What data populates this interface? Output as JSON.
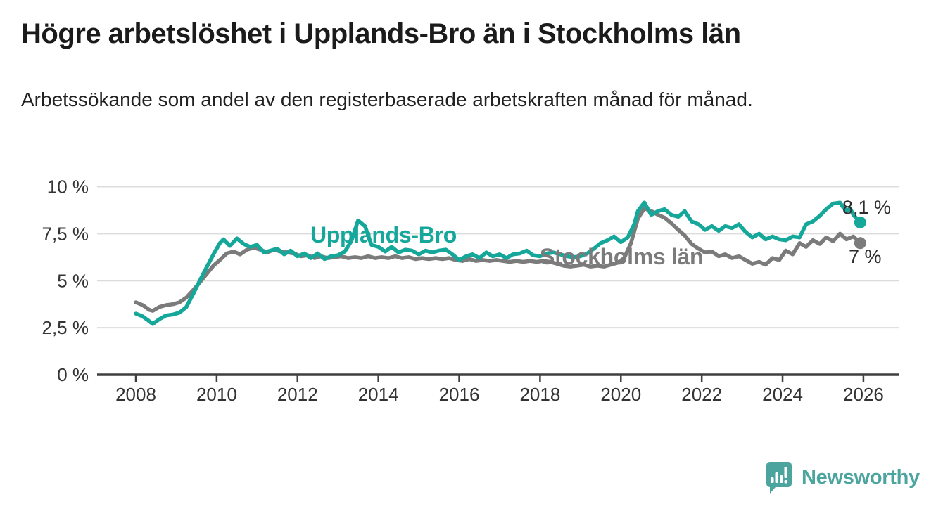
{
  "header": {
    "title": "Högre arbetslöshet i Upplands-Bro än i Stockholms län",
    "subtitle": "Arbetssökande som andel av den registerbaserade arbetskraften månad för månad."
  },
  "chart_data": {
    "type": "line",
    "title": "Högre arbetslöshet i Upplands-Bro än i Stockholms län",
    "grid": true,
    "legend_position": "inline-labels",
    "y_axis": {
      "range": [
        0,
        10
      ],
      "tick_values": [
        0,
        2.5,
        5,
        7.5,
        10
      ],
      "tick_labels": [
        "0 %",
        "2,5 %",
        "5 %",
        "7,5 %",
        "10 %"
      ]
    },
    "x_axis": {
      "range": [
        2007.6,
        2026.9
      ],
      "tick_values": [
        2008,
        2010,
        2012,
        2014,
        2016,
        2018,
        2020,
        2022,
        2024,
        2026
      ],
      "tick_labels": [
        "2008",
        "2010",
        "2012",
        "2014",
        "2016",
        "2018",
        "2020",
        "2022",
        "2024",
        "2026"
      ]
    },
    "series": [
      {
        "name": "Upplands-Bro",
        "color": "#16A79B",
        "end_label": "8,1 %",
        "end_value": 8.1,
        "points": [
          [
            2008.0,
            3.25
          ],
          [
            2008.17,
            3.1
          ],
          [
            2008.33,
            2.85
          ],
          [
            2008.42,
            2.7
          ],
          [
            2008.58,
            2.95
          ],
          [
            2008.75,
            3.15
          ],
          [
            2008.92,
            3.2
          ],
          [
            2009.08,
            3.3
          ],
          [
            2009.25,
            3.6
          ],
          [
            2009.42,
            4.3
          ],
          [
            2009.58,
            5.0
          ],
          [
            2009.75,
            5.7
          ],
          [
            2009.92,
            6.4
          ],
          [
            2010.08,
            7.0
          ],
          [
            2010.17,
            7.2
          ],
          [
            2010.33,
            6.85
          ],
          [
            2010.5,
            7.25
          ],
          [
            2010.67,
            6.95
          ],
          [
            2010.83,
            6.8
          ],
          [
            2011.0,
            6.9
          ],
          [
            2011.17,
            6.5
          ],
          [
            2011.33,
            6.6
          ],
          [
            2011.5,
            6.7
          ],
          [
            2011.67,
            6.4
          ],
          [
            2011.83,
            6.6
          ],
          [
            2012.0,
            6.3
          ],
          [
            2012.17,
            6.45
          ],
          [
            2012.33,
            6.2
          ],
          [
            2012.5,
            6.45
          ],
          [
            2012.67,
            6.15
          ],
          [
            2012.83,
            6.3
          ],
          [
            2013.0,
            6.35
          ],
          [
            2013.17,
            6.55
          ],
          [
            2013.33,
            7.1
          ],
          [
            2013.5,
            8.2
          ],
          [
            2013.67,
            7.9
          ],
          [
            2013.83,
            6.9
          ],
          [
            2014.0,
            6.8
          ],
          [
            2014.17,
            6.55
          ],
          [
            2014.33,
            6.8
          ],
          [
            2014.5,
            6.5
          ],
          [
            2014.67,
            6.65
          ],
          [
            2014.83,
            6.6
          ],
          [
            2015.0,
            6.4
          ],
          [
            2015.17,
            6.6
          ],
          [
            2015.33,
            6.5
          ],
          [
            2015.5,
            6.6
          ],
          [
            2015.67,
            6.65
          ],
          [
            2015.83,
            6.4
          ],
          [
            2016.0,
            6.1
          ],
          [
            2016.17,
            6.3
          ],
          [
            2016.33,
            6.4
          ],
          [
            2016.5,
            6.2
          ],
          [
            2016.67,
            6.5
          ],
          [
            2016.83,
            6.3
          ],
          [
            2017.0,
            6.4
          ],
          [
            2017.17,
            6.2
          ],
          [
            2017.33,
            6.4
          ],
          [
            2017.5,
            6.45
          ],
          [
            2017.67,
            6.6
          ],
          [
            2017.83,
            6.35
          ],
          [
            2018.0,
            6.3
          ],
          [
            2018.17,
            6.45
          ],
          [
            2018.33,
            6.5
          ],
          [
            2018.5,
            6.4
          ],
          [
            2018.67,
            6.3
          ],
          [
            2018.83,
            6.25
          ],
          [
            2019.0,
            6.3
          ],
          [
            2019.17,
            6.45
          ],
          [
            2019.33,
            6.7
          ],
          [
            2019.5,
            7.0
          ],
          [
            2019.67,
            7.15
          ],
          [
            2019.83,
            7.35
          ],
          [
            2020.0,
            7.05
          ],
          [
            2020.17,
            7.3
          ],
          [
            2020.33,
            8.0
          ],
          [
            2020.42,
            8.7
          ],
          [
            2020.58,
            9.15
          ],
          [
            2020.75,
            8.5
          ],
          [
            2020.92,
            8.7
          ],
          [
            2021.08,
            8.8
          ],
          [
            2021.25,
            8.5
          ],
          [
            2021.42,
            8.4
          ],
          [
            2021.58,
            8.7
          ],
          [
            2021.75,
            8.15
          ],
          [
            2021.92,
            8.0
          ],
          [
            2022.08,
            7.7
          ],
          [
            2022.25,
            7.9
          ],
          [
            2022.42,
            7.65
          ],
          [
            2022.58,
            7.9
          ],
          [
            2022.75,
            7.8
          ],
          [
            2022.92,
            8.0
          ],
          [
            2023.08,
            7.6
          ],
          [
            2023.25,
            7.3
          ],
          [
            2023.42,
            7.5
          ],
          [
            2023.58,
            7.2
          ],
          [
            2023.75,
            7.35
          ],
          [
            2023.92,
            7.2
          ],
          [
            2024.08,
            7.15
          ],
          [
            2024.25,
            7.35
          ],
          [
            2024.42,
            7.3
          ],
          [
            2024.58,
            8.0
          ],
          [
            2024.75,
            8.15
          ],
          [
            2024.92,
            8.45
          ],
          [
            2025.08,
            8.8
          ],
          [
            2025.25,
            9.1
          ],
          [
            2025.42,
            9.15
          ],
          [
            2025.5,
            8.9
          ],
          [
            2025.58,
            8.7
          ],
          [
            2025.67,
            8.85
          ],
          [
            2025.75,
            8.5
          ],
          [
            2025.92,
            8.1
          ]
        ]
      },
      {
        "name": "Stockholms län",
        "color": "#7B7B7B",
        "end_label": "7 %",
        "end_value": 7.0,
        "points": [
          [
            2008.0,
            3.85
          ],
          [
            2008.17,
            3.7
          ],
          [
            2008.33,
            3.45
          ],
          [
            2008.42,
            3.4
          ],
          [
            2008.58,
            3.6
          ],
          [
            2008.75,
            3.7
          ],
          [
            2008.92,
            3.75
          ],
          [
            2009.08,
            3.85
          ],
          [
            2009.25,
            4.1
          ],
          [
            2009.42,
            4.5
          ],
          [
            2009.58,
            4.9
          ],
          [
            2009.75,
            5.35
          ],
          [
            2009.92,
            5.8
          ],
          [
            2010.08,
            6.1
          ],
          [
            2010.25,
            6.45
          ],
          [
            2010.42,
            6.55
          ],
          [
            2010.58,
            6.4
          ],
          [
            2010.75,
            6.65
          ],
          [
            2010.92,
            6.75
          ],
          [
            2011.08,
            6.65
          ],
          [
            2011.25,
            6.5
          ],
          [
            2011.42,
            6.65
          ],
          [
            2011.58,
            6.55
          ],
          [
            2011.75,
            6.5
          ],
          [
            2011.92,
            6.45
          ],
          [
            2012.08,
            6.3
          ],
          [
            2012.25,
            6.35
          ],
          [
            2012.42,
            6.2
          ],
          [
            2012.58,
            6.3
          ],
          [
            2012.75,
            6.2
          ],
          [
            2012.92,
            6.25
          ],
          [
            2013.08,
            6.3
          ],
          [
            2013.25,
            6.2
          ],
          [
            2013.42,
            6.25
          ],
          [
            2013.58,
            6.2
          ],
          [
            2013.75,
            6.3
          ],
          [
            2013.92,
            6.2
          ],
          [
            2014.08,
            6.25
          ],
          [
            2014.25,
            6.2
          ],
          [
            2014.42,
            6.3
          ],
          [
            2014.58,
            6.2
          ],
          [
            2014.75,
            6.25
          ],
          [
            2014.92,
            6.15
          ],
          [
            2015.08,
            6.2
          ],
          [
            2015.25,
            6.15
          ],
          [
            2015.42,
            6.2
          ],
          [
            2015.58,
            6.15
          ],
          [
            2015.75,
            6.2
          ],
          [
            2015.92,
            6.1
          ],
          [
            2016.08,
            6.05
          ],
          [
            2016.25,
            6.15
          ],
          [
            2016.42,
            6.05
          ],
          [
            2016.58,
            6.1
          ],
          [
            2016.75,
            6.05
          ],
          [
            2016.92,
            6.1
          ],
          [
            2017.08,
            6.05
          ],
          [
            2017.25,
            6.0
          ],
          [
            2017.42,
            6.05
          ],
          [
            2017.58,
            6.0
          ],
          [
            2017.75,
            6.05
          ],
          [
            2017.92,
            6.0
          ],
          [
            2018.08,
            6.05
          ],
          [
            2018.25,
            6.0
          ],
          [
            2018.42,
            5.9
          ],
          [
            2018.58,
            5.8
          ],
          [
            2018.75,
            5.75
          ],
          [
            2018.92,
            5.8
          ],
          [
            2019.08,
            5.85
          ],
          [
            2019.25,
            5.75
          ],
          [
            2019.42,
            5.8
          ],
          [
            2019.58,
            5.75
          ],
          [
            2019.75,
            5.85
          ],
          [
            2019.92,
            5.95
          ],
          [
            2020.08,
            6.2
          ],
          [
            2020.25,
            7.0
          ],
          [
            2020.42,
            8.3
          ],
          [
            2020.58,
            8.85
          ],
          [
            2020.75,
            8.7
          ],
          [
            2020.92,
            8.5
          ],
          [
            2021.08,
            8.35
          ],
          [
            2021.25,
            8.05
          ],
          [
            2021.42,
            7.7
          ],
          [
            2021.58,
            7.4
          ],
          [
            2021.75,
            6.95
          ],
          [
            2021.92,
            6.7
          ],
          [
            2022.08,
            6.5
          ],
          [
            2022.25,
            6.55
          ],
          [
            2022.42,
            6.3
          ],
          [
            2022.58,
            6.4
          ],
          [
            2022.75,
            6.2
          ],
          [
            2022.92,
            6.3
          ],
          [
            2023.08,
            6.1
          ],
          [
            2023.25,
            5.9
          ],
          [
            2023.42,
            6.0
          ],
          [
            2023.58,
            5.85
          ],
          [
            2023.75,
            6.2
          ],
          [
            2023.92,
            6.1
          ],
          [
            2024.08,
            6.6
          ],
          [
            2024.25,
            6.4
          ],
          [
            2024.42,
            7.0
          ],
          [
            2024.58,
            6.8
          ],
          [
            2024.75,
            7.15
          ],
          [
            2024.92,
            6.95
          ],
          [
            2025.08,
            7.3
          ],
          [
            2025.25,
            7.1
          ],
          [
            2025.42,
            7.5
          ],
          [
            2025.58,
            7.2
          ],
          [
            2025.75,
            7.35
          ],
          [
            2025.92,
            7.0
          ]
        ]
      }
    ],
    "colors": {
      "upplands_bro": "#16A79B",
      "stockholms_lan": "#7B7B7B",
      "gridline": "#DCDCDC",
      "axis": "#3F3F3F",
      "tick_text": "#333333",
      "end_label_text": "#2E2E2E"
    }
  },
  "footer": {
    "brand": "Newsworthy",
    "brand_color": "#4CA49E"
  }
}
